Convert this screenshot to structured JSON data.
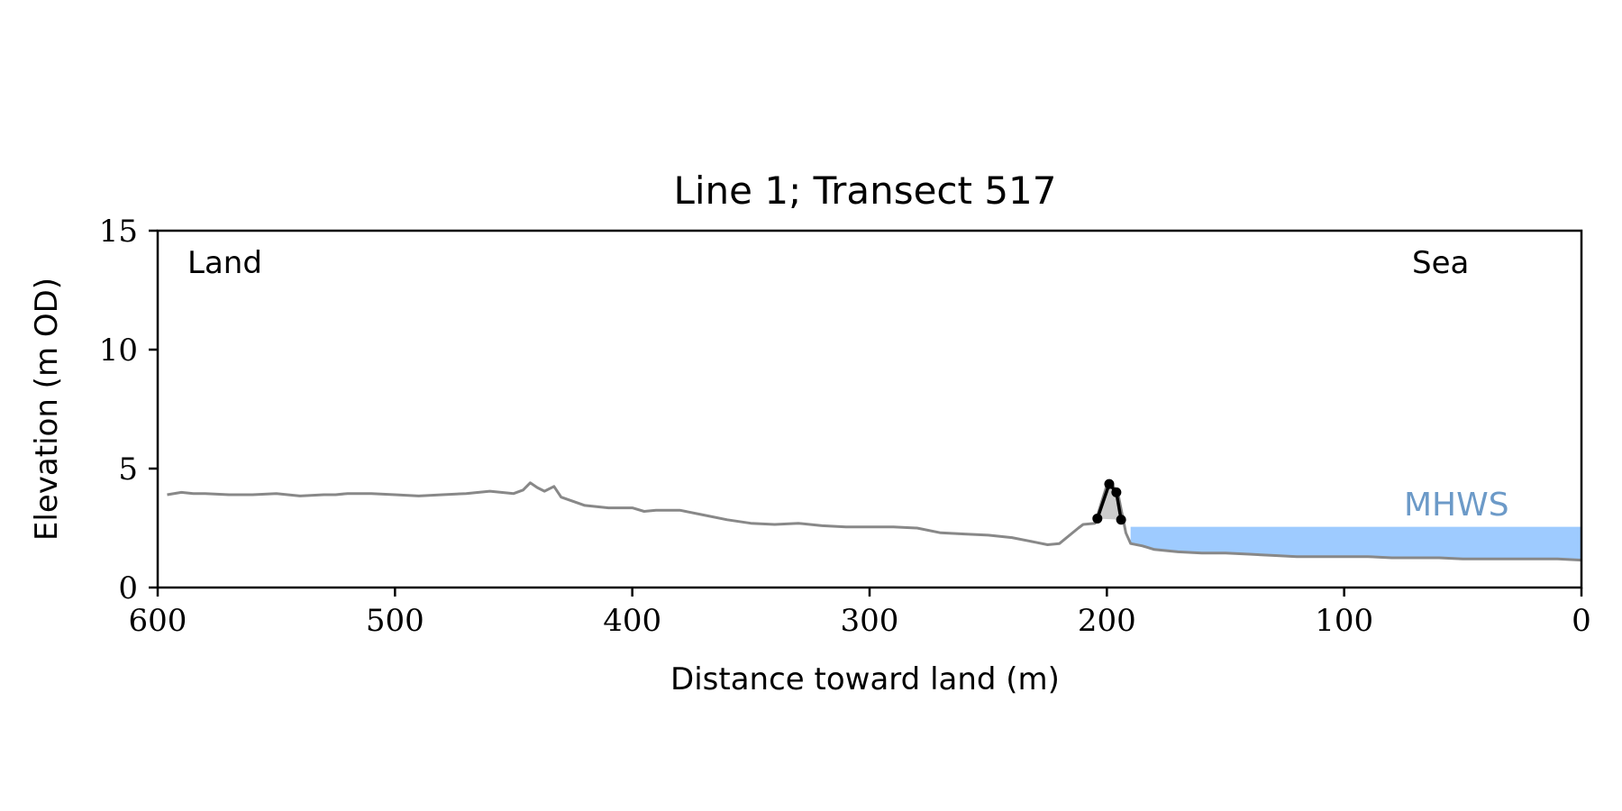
{
  "chart_data": {
    "type": "line",
    "title": "Line 1; Transect 517",
    "xlabel": "Distance toward land (m)",
    "ylabel": "Elevation (m OD)",
    "xlim": [
      600,
      0
    ],
    "ylim": [
      0,
      15
    ],
    "x_ticks": [
      600,
      500,
      400,
      300,
      200,
      100,
      0
    ],
    "y_ticks": [
      0,
      5,
      10,
      15
    ],
    "grid": false,
    "legend": "none",
    "annotations": {
      "land": "Land",
      "sea": "Sea",
      "mhws": "MHWS"
    },
    "colors": {
      "profile": "#888888",
      "mhws_fill": "#9ecbff",
      "mhws_text": "#6c9ac8",
      "dune": "#000000",
      "dune_fill": "#cccccc"
    },
    "profile": {
      "x": [
        596,
        590,
        585,
        580,
        570,
        560,
        550,
        540,
        530,
        525,
        520,
        510,
        500,
        490,
        480,
        470,
        460,
        450,
        446,
        443,
        440,
        437,
        433,
        430,
        420,
        410,
        400,
        395,
        390,
        380,
        370,
        360,
        350,
        340,
        330,
        320,
        310,
        300,
        290,
        280,
        270,
        260,
        250,
        240,
        230,
        225,
        220,
        212,
        210,
        205,
        200,
        198,
        195,
        192,
        190,
        185,
        180,
        170,
        160,
        150,
        140,
        130,
        120,
        110,
        100,
        90,
        80,
        70,
        60,
        50,
        40,
        30,
        20,
        10,
        0
      ],
      "y": [
        3.9,
        4.0,
        3.95,
        3.95,
        3.9,
        3.9,
        3.95,
        3.85,
        3.9,
        3.9,
        3.95,
        3.95,
        3.9,
        3.85,
        3.9,
        3.95,
        4.05,
        3.95,
        4.1,
        4.4,
        4.2,
        4.05,
        4.25,
        3.8,
        3.45,
        3.35,
        3.35,
        3.2,
        3.25,
        3.25,
        3.05,
        2.85,
        2.7,
        2.65,
        2.7,
        2.6,
        2.55,
        2.55,
        2.55,
        2.5,
        2.3,
        2.25,
        2.2,
        2.1,
        1.9,
        1.8,
        1.85,
        2.5,
        2.65,
        2.7,
        4.3,
        4.4,
        3.8,
        2.3,
        1.85,
        1.75,
        1.6,
        1.5,
        1.45,
        1.45,
        1.4,
        1.35,
        1.3,
        1.3,
        1.3,
        1.3,
        1.25,
        1.25,
        1.25,
        1.2,
        1.2,
        1.2,
        1.2,
        1.2,
        1.15
      ]
    },
    "mhws": {
      "elevation": 2.55,
      "x_start": 190,
      "x_end": 0
    },
    "dune_points": {
      "x": [
        204,
        199,
        196,
        194
      ],
      "y": [
        2.9,
        4.35,
        4.0,
        2.85
      ]
    }
  }
}
